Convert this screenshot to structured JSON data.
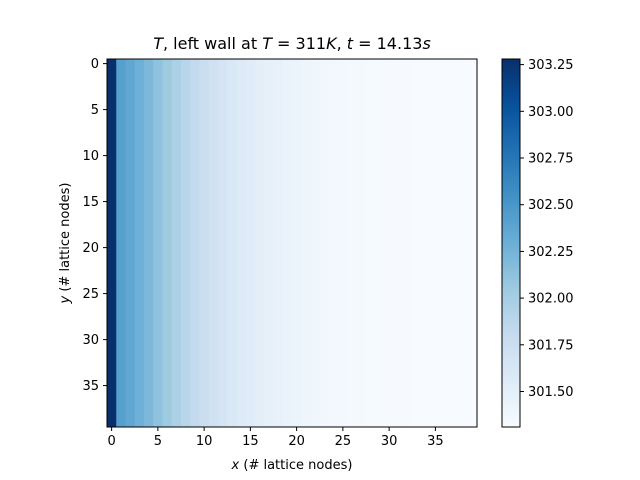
{
  "chart_data": {
    "type": "heatmap",
    "title_parts": [
      {
        "t": "T",
        "italic": true
      },
      {
        "t": ", left wall at ",
        "italic": false
      },
      {
        "t": "T",
        "italic": true
      },
      {
        "t": " = 311",
        "italic": false
      },
      {
        "t": "K",
        "italic": true
      },
      {
        "t": ", ",
        "italic": false
      },
      {
        "t": "t",
        "italic": true
      },
      {
        "t": " = 14.13",
        "italic": false
      },
      {
        "t": "s",
        "italic": true
      }
    ],
    "xlabel_var": "x",
    "xlabel_rest": " (# lattice nodes)",
    "ylabel_var": "y",
    "ylabel_rest": " (# lattice nodes)",
    "nx": 40,
    "ny": 40,
    "x_ticks": [
      0,
      5,
      10,
      15,
      20,
      25,
      30,
      35
    ],
    "y_ticks": [
      0,
      5,
      10,
      15,
      20,
      25,
      30,
      35
    ],
    "colormap": "Blues",
    "vmin": 301.31,
    "vmax": 303.28,
    "colorbar_ticks": [
      "301.50",
      "301.75",
      "302.00",
      "302.25",
      "302.50",
      "302.75",
      "303.00",
      "303.25"
    ],
    "column_values": [
      303.28,
      302.42,
      302.36,
      302.28,
      302.21,
      302.12,
      302.04,
      301.96,
      301.89,
      301.82,
      301.76,
      301.71,
      301.66,
      301.61,
      301.57,
      301.54,
      301.51,
      301.48,
      301.46,
      301.44,
      301.42,
      301.4,
      301.39,
      301.37,
      301.36,
      301.35,
      301.34,
      301.34,
      301.33,
      301.33,
      301.32,
      301.32,
      301.32,
      301.31,
      301.31,
      301.31,
      301.31,
      301.31,
      301.31,
      301.31
    ],
    "grid": false
  }
}
